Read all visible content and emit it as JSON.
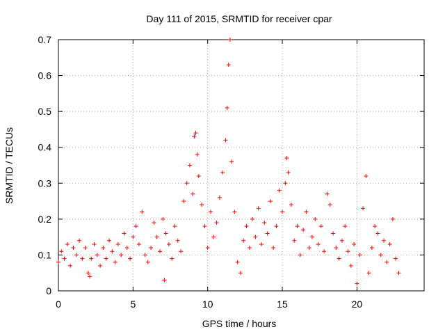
{
  "chart_data": {
    "type": "scatter",
    "title": "Day 111 of 2015, SRMTID for receiver cpar",
    "xlabel": "GPS time / hours",
    "ylabel": "SRMTID / TECUs",
    "xlim": [
      0,
      24.5
    ],
    "ylim": [
      0,
      0.7
    ],
    "xticks": [
      0,
      5,
      10,
      15,
      20
    ],
    "xtick_labels": [
      "0",
      "5",
      "10",
      "15",
      "20"
    ],
    "yticks": [
      0,
      0.1,
      0.2,
      0.3,
      0.4,
      0.5,
      0.6,
      0.7
    ],
    "ytick_labels": [
      "0",
      "0.1",
      "0.2",
      "0.3",
      "0.4",
      "0.5",
      "0.6",
      "0.7"
    ],
    "grid": true,
    "marker": "+",
    "series": [
      {
        "name": "cpar",
        "color": "#ff0000",
        "x": [
          0.0,
          0.2,
          0.4,
          0.6,
          0.8,
          1.0,
          1.2,
          1.4,
          1.6,
          1.8,
          2.0,
          2.1,
          2.2,
          2.4,
          2.6,
          2.8,
          3.0,
          3.2,
          3.4,
          3.6,
          3.8,
          4.0,
          4.2,
          4.4,
          4.6,
          4.8,
          5.0,
          5.2,
          5.4,
          5.6,
          5.8,
          6.0,
          6.2,
          6.4,
          6.6,
          6.8,
          7.0,
          7.1,
          7.2,
          7.4,
          7.6,
          7.8,
          8.0,
          8.2,
          8.4,
          8.6,
          8.8,
          9.0,
          9.1,
          9.2,
          9.3,
          9.4,
          9.6,
          9.8,
          10.0,
          10.2,
          10.4,
          10.6,
          10.8,
          11.0,
          11.2,
          11.3,
          11.4,
          11.5,
          11.6,
          11.8,
          12.0,
          12.2,
          12.4,
          12.6,
          12.8,
          13.0,
          13.2,
          13.4,
          13.6,
          13.8,
          14.0,
          14.2,
          14.4,
          14.6,
          14.8,
          15.0,
          15.2,
          15.3,
          15.4,
          15.6,
          15.8,
          16.0,
          16.2,
          16.4,
          16.6,
          16.8,
          17.0,
          17.2,
          17.4,
          17.6,
          17.8,
          18.0,
          18.2,
          18.4,
          18.6,
          18.8,
          19.0,
          19.2,
          19.4,
          19.6,
          19.8,
          20.0,
          20.2,
          20.4,
          20.6,
          20.8,
          21.0,
          21.2,
          21.4,
          21.6,
          21.8,
          22.0,
          22.2,
          22.4,
          22.6,
          22.8
        ],
        "y": [
          0.08,
          0.11,
          0.09,
          0.13,
          0.07,
          0.12,
          0.1,
          0.14,
          0.09,
          0.12,
          0.05,
          0.04,
          0.09,
          0.13,
          0.1,
          0.07,
          0.12,
          0.09,
          0.14,
          0.11,
          0.08,
          0.13,
          0.1,
          0.16,
          0.12,
          0.09,
          0.15,
          0.18,
          0.13,
          0.22,
          0.1,
          0.08,
          0.12,
          0.19,
          0.15,
          0.11,
          0.2,
          0.03,
          0.16,
          0.13,
          0.09,
          0.18,
          0.14,
          0.11,
          0.25,
          0.3,
          0.35,
          0.27,
          0.43,
          0.44,
          0.38,
          0.32,
          0.24,
          0.18,
          0.12,
          0.22,
          0.15,
          0.19,
          0.26,
          0.33,
          0.42,
          0.51,
          0.63,
          0.7,
          0.36,
          0.22,
          0.08,
          0.05,
          0.14,
          0.18,
          0.12,
          0.2,
          0.15,
          0.23,
          0.13,
          0.19,
          0.16,
          0.25,
          0.12,
          0.18,
          0.28,
          0.22,
          0.3,
          0.37,
          0.33,
          0.24,
          0.14,
          0.18,
          0.1,
          0.17,
          0.22,
          0.12,
          0.15,
          0.2,
          0.13,
          0.18,
          0.11,
          0.27,
          0.24,
          0.16,
          0.12,
          0.09,
          0.14,
          0.18,
          0.11,
          0.07,
          0.13,
          0.02,
          0.1,
          0.23,
          0.32,
          0.05,
          0.12,
          0.18,
          0.16,
          0.1,
          0.14,
          0.08,
          0.13,
          0.2,
          0.09,
          0.05
        ]
      }
    ]
  }
}
